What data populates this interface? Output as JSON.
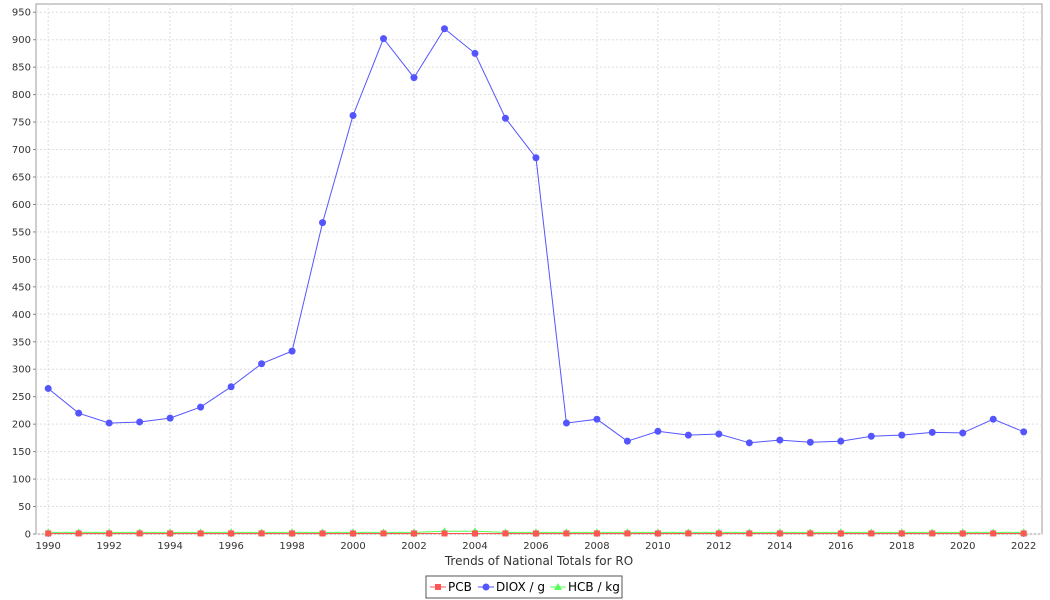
{
  "chart_data": {
    "type": "line",
    "title": "",
    "xlabel": "Trends of National Totals for RO",
    "ylabel": "",
    "xlim": [
      1989.6,
      2022.6
    ],
    "ylim": [
      0,
      965
    ],
    "y_ticks": [
      0,
      50,
      100,
      150,
      200,
      250,
      300,
      350,
      400,
      450,
      500,
      550,
      600,
      650,
      700,
      750,
      800,
      850,
      900,
      950
    ],
    "x_ticks": [
      1990,
      1992,
      1994,
      1996,
      1998,
      2000,
      2002,
      2004,
      2006,
      2008,
      2010,
      2012,
      2014,
      2016,
      2018,
      2020,
      2022
    ],
    "grid": true,
    "legend_position": "bottom",
    "x": [
      1990,
      1991,
      1992,
      1993,
      1994,
      1995,
      1996,
      1997,
      1998,
      1999,
      2000,
      2001,
      2002,
      2003,
      2004,
      2005,
      2006,
      2007,
      2008,
      2009,
      2010,
      2011,
      2012,
      2013,
      2014,
      2015,
      2016,
      2017,
      2018,
      2019,
      2020,
      2021,
      2022
    ],
    "series": [
      {
        "name": "PCB",
        "color": "#ff5555",
        "marker": "square",
        "values": [
          1,
          1,
          1,
          1,
          1,
          1,
          1,
          1,
          1,
          1,
          1,
          1,
          1,
          1,
          1,
          1,
          1,
          1,
          1,
          1,
          1,
          1,
          1,
          1,
          1,
          1,
          1,
          1,
          1,
          1,
          1,
          1,
          1
        ]
      },
      {
        "name": "DIOX / g",
        "color": "#5555ff",
        "marker": "circle",
        "values": [
          265,
          220,
          202,
          204,
          211,
          231,
          268,
          310,
          333,
          567,
          762,
          902,
          831,
          920,
          875,
          757,
          685,
          202,
          209,
          169,
          187,
          180,
          182,
          166,
          171,
          167,
          169,
          178,
          180,
          185,
          184,
          209,
          186
        ]
      },
      {
        "name": "HCB / kg",
        "color": "#55ff55",
        "marker": "triangle",
        "values": [
          3,
          3,
          3,
          3,
          3,
          3,
          3,
          3,
          3,
          3,
          3,
          3,
          3,
          5,
          5,
          3,
          3,
          3,
          3,
          3,
          3,
          3,
          3,
          3,
          3,
          3,
          3,
          3,
          3,
          3,
          3,
          3,
          3
        ]
      }
    ]
  }
}
